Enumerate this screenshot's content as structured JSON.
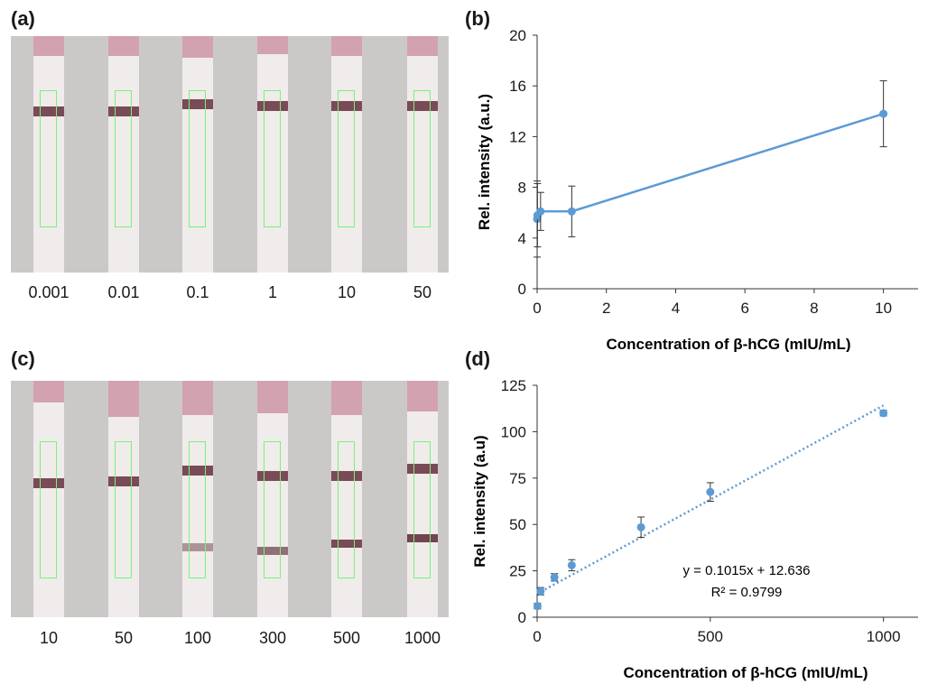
{
  "panels": {
    "a": {
      "label": "(a)",
      "strip_labels": [
        "0.001",
        "0.01",
        "0.1",
        "1",
        "10",
        "50"
      ]
    },
    "b": {
      "label": "(b)"
    },
    "c": {
      "label": "(c)",
      "strip_labels": [
        "10",
        "50",
        "100",
        "300",
        "500",
        "1000"
      ]
    },
    "d": {
      "label": "(d)"
    }
  },
  "colors": {
    "series": "#5b9bd5",
    "test_line": "#6b3a46",
    "roi_box": "#7cf07a",
    "strip": "#efeceb",
    "strip_top": "#c98a9e",
    "photo_bg": "#cbc9c7"
  },
  "chart_data": [
    {
      "panel": "b",
      "type": "line",
      "title": "",
      "xlabel": "Concentration of β-hCG (mIU/mL)",
      "ylabel": "Rel. intensity (a.u.)",
      "xlim": [
        0,
        11
      ],
      "ylim": [
        0,
        20
      ],
      "xticks": [
        0,
        2,
        4,
        6,
        8,
        10
      ],
      "yticks": [
        0,
        4,
        8,
        12,
        16,
        20
      ],
      "grid": false,
      "series": [
        {
          "x": [
            0.001,
            0.01,
            0.1,
            1,
            10
          ],
          "y": [
            5.5,
            5.8,
            6.1,
            6.1,
            13.8
          ],
          "error": [
            3.0,
            2.5,
            1.5,
            2.0,
            2.6
          ]
        }
      ]
    },
    {
      "panel": "d",
      "type": "scatter",
      "title": "",
      "xlabel": "Concentration of β-hCG (mIU/mL)",
      "ylabel": "Rel. intensity (a.u)",
      "xlim": [
        0,
        1100
      ],
      "ylim": [
        0,
        125
      ],
      "xticks": [
        0,
        500,
        1000
      ],
      "yticks": [
        0,
        25,
        50,
        75,
        100,
        125
      ],
      "grid": false,
      "series": [
        {
          "x": [
            1,
            10,
            50,
            100,
            300,
            500,
            1000
          ],
          "y": [
            6,
            14,
            21.5,
            28,
            48.5,
            67.5,
            110
          ],
          "error": [
            1.5,
            2.0,
            2.0,
            3.0,
            5.5,
            5.0,
            1.5
          ]
        }
      ],
      "trendline": {
        "slope": 0.1015,
        "intercept": 12.636,
        "x_range": [
          0,
          1000
        ]
      },
      "annotations": [
        "y = 0.1015x + 12.636",
        "R² = 0.9799"
      ]
    }
  ]
}
